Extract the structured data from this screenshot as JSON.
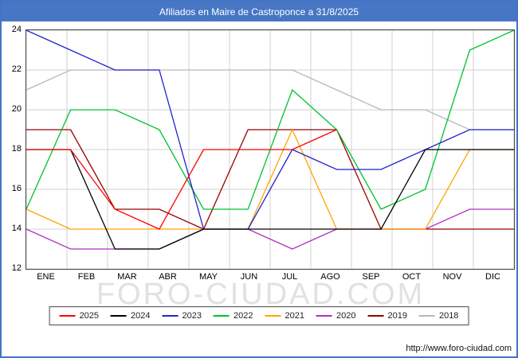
{
  "header": {
    "title": "Afiliados en Maire de Castroponce a 31/8/2025",
    "bg": "#4777c4",
    "text_color": "#ffffff",
    "frame_border": "#4473c5"
  },
  "watermark": "FORO-CIUDAD.COM",
  "footer": {
    "url": "http://www.foro-ciudad.com"
  },
  "chart_data": {
    "type": "line",
    "title": "Afiliados en Maire de Castroponce a 31/8/2025",
    "categories": [
      "ENE",
      "FEB",
      "MAR",
      "ABR",
      "MAY",
      "JUN",
      "JUL",
      "AGO",
      "SEP",
      "OCT",
      "NOV",
      "DIC"
    ],
    "ylim": [
      12,
      24
    ],
    "yticks": [
      12,
      14,
      16,
      18,
      20,
      22,
      24
    ],
    "grid": true,
    "gridline_color": "#d0d0d0",
    "legend_position": "bottom",
    "series": [
      {
        "name": "2025",
        "color": "#ff0000",
        "values": [
          18,
          18,
          15,
          14,
          18,
          18,
          18,
          19,
          null,
          null,
          null,
          null
        ]
      },
      {
        "name": "2024",
        "color": "#000000",
        "values": [
          18,
          18,
          13,
          13,
          14,
          14,
          14,
          14,
          14,
          18,
          18,
          18
        ]
      },
      {
        "name": "2023",
        "color": "#2222cc",
        "values": [
          24,
          23,
          22,
          22,
          14,
          14,
          18,
          17,
          17,
          18,
          19,
          19
        ]
      },
      {
        "name": "2022",
        "color": "#00c030",
        "values": [
          15,
          20,
          20,
          19,
          15,
          15,
          21,
          19,
          15,
          16,
          23,
          24
        ]
      },
      {
        "name": "2021",
        "color": "#ffa500",
        "values": [
          15,
          14,
          14,
          14,
          14,
          14,
          19,
          14,
          14,
          14,
          18,
          18
        ]
      },
      {
        "name": "2020",
        "color": "#b030c0",
        "values": [
          14,
          13,
          13,
          13,
          14,
          14,
          13,
          14,
          14,
          14,
          15,
          15
        ]
      },
      {
        "name": "2019",
        "color": "#990000",
        "values": [
          19,
          19,
          15,
          15,
          14,
          19,
          19,
          19,
          14,
          14,
          14,
          14
        ]
      },
      {
        "name": "2018",
        "color": "#b8b8b8",
        "values": [
          21,
          22,
          22,
          22,
          22,
          22,
          22,
          21,
          20,
          20,
          19,
          19
        ]
      }
    ]
  }
}
